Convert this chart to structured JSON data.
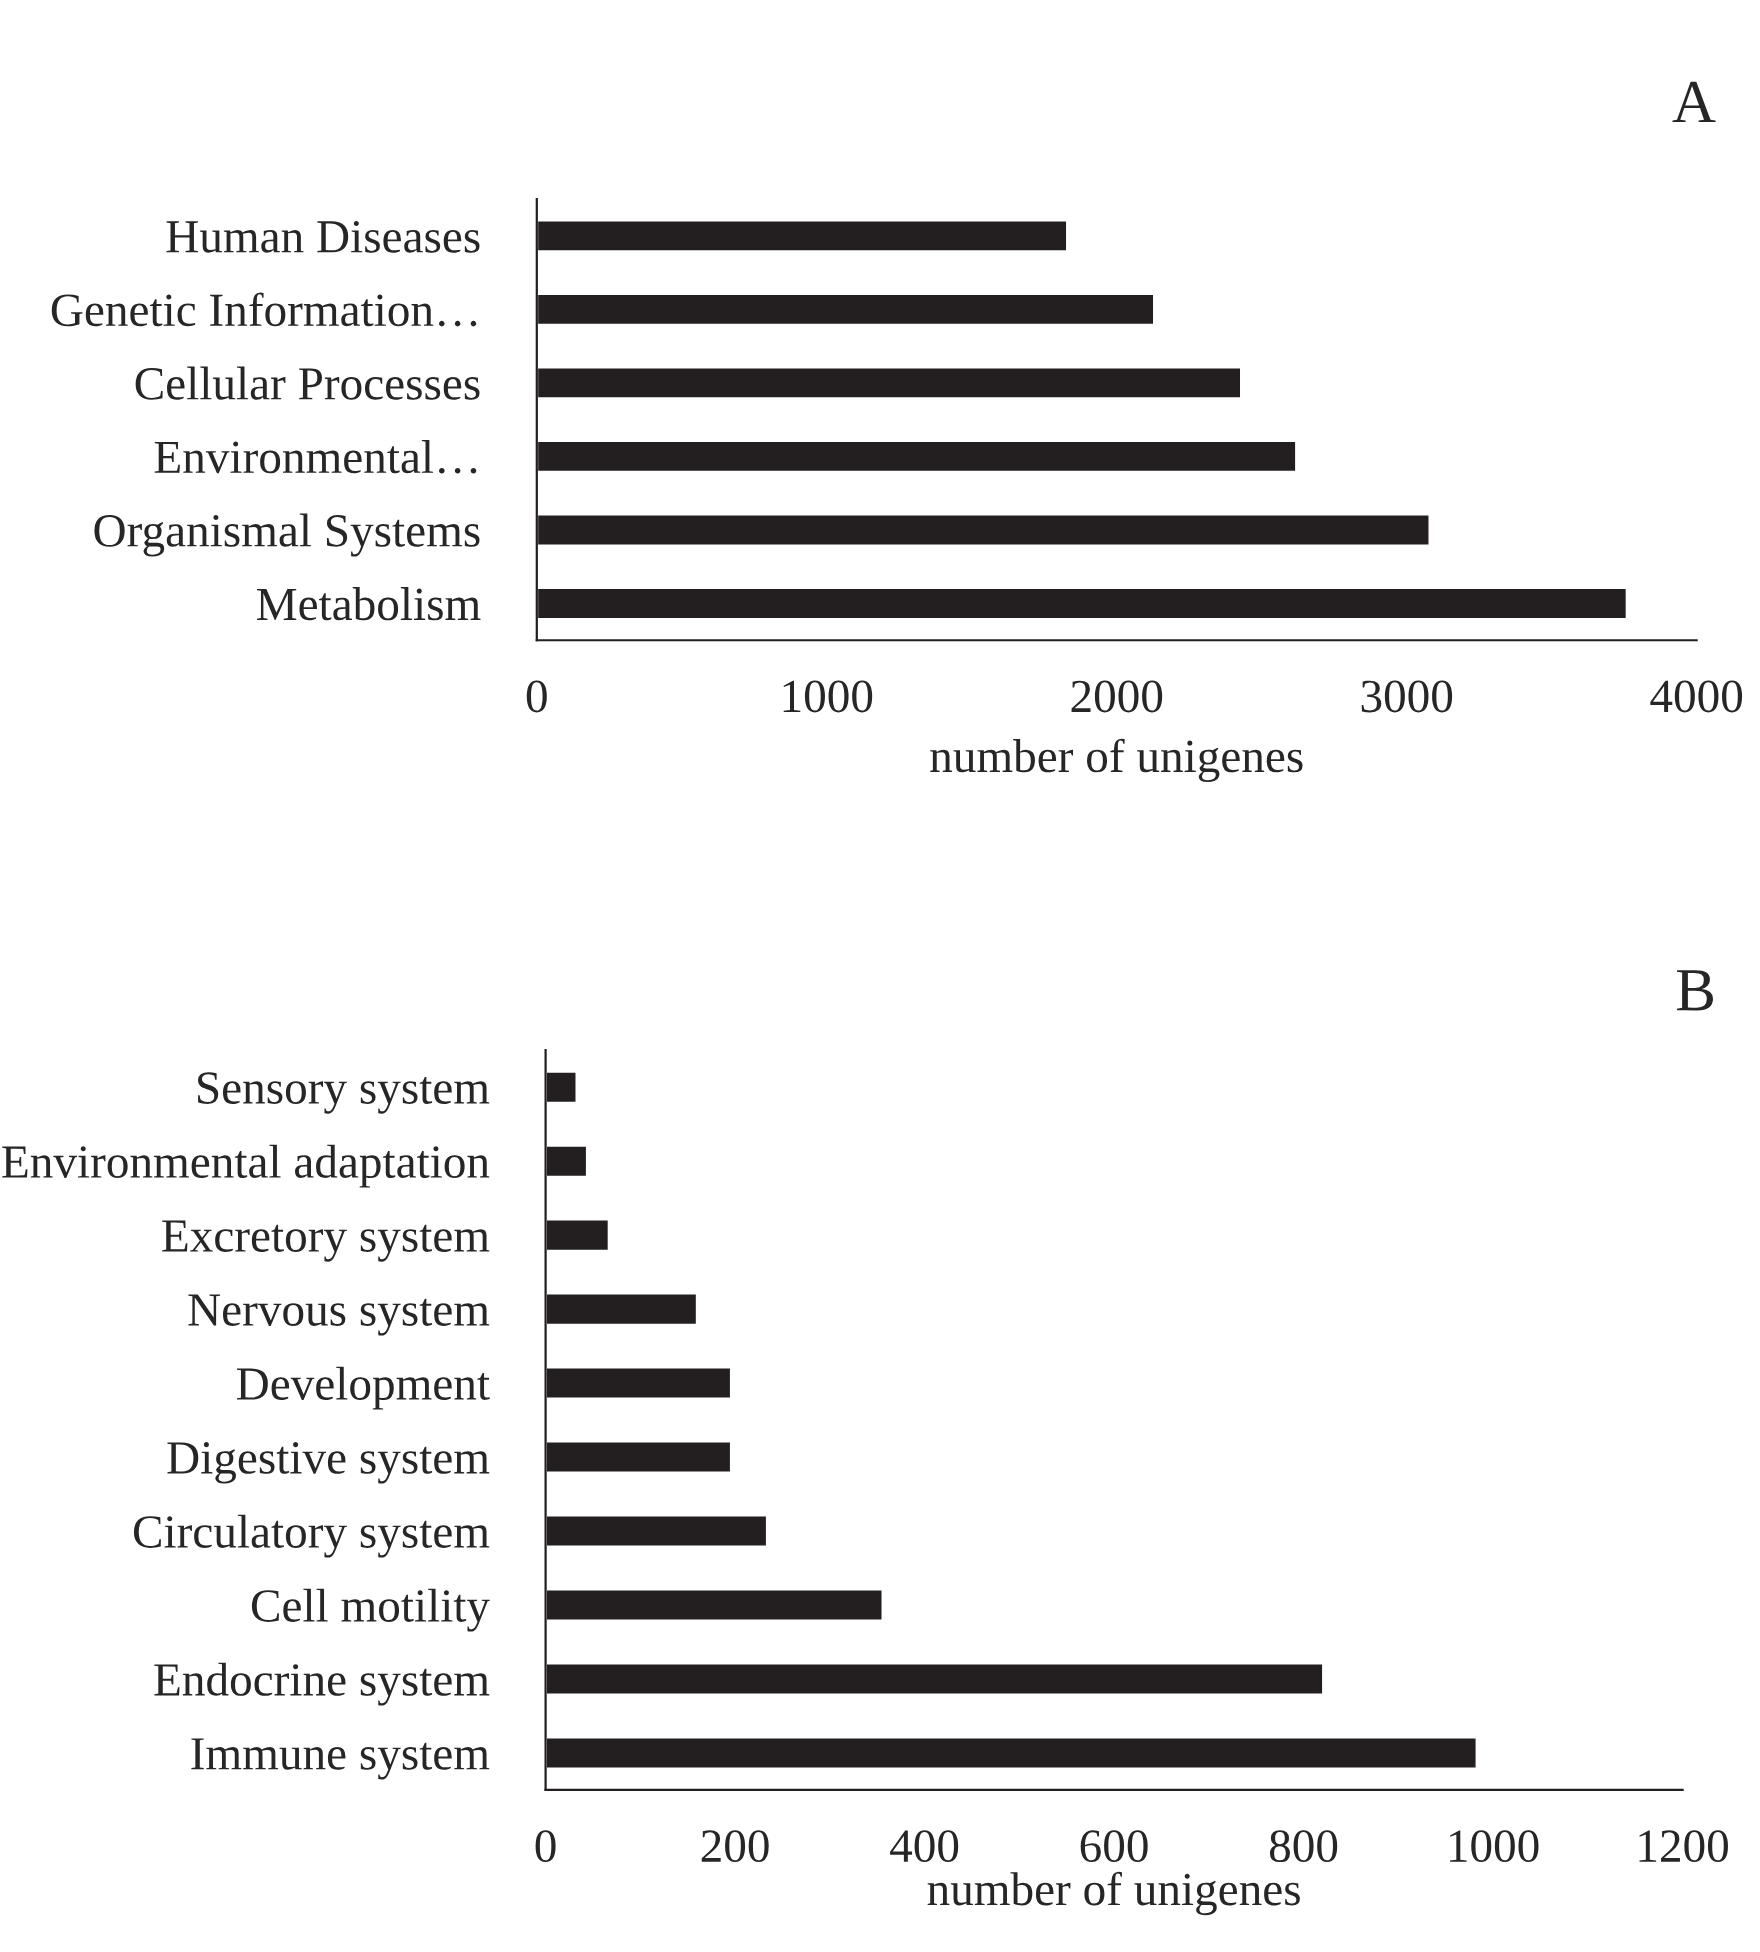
{
  "chart_data": [
    {
      "type": "bar",
      "orientation": "horizontal",
      "categories": [
        "Human Diseases",
        "Genetic Information…",
        "Cellular Processes",
        "Environmental…",
        "Organismal Systems",
        "Metabolism"
      ],
      "values": [
        1830,
        2130,
        2430,
        2620,
        3080,
        3760
      ],
      "color": "#231f20",
      "xlabel": "number of unigenes",
      "xlim": [
        0,
        4000
      ],
      "xticks": [
        0,
        1000,
        2000,
        3000,
        4000
      ],
      "grid": false,
      "annotations": [
        "A"
      ]
    },
    {
      "type": "bar",
      "orientation": "horizontal",
      "categories": [
        "Sensory system",
        "Environmental adaptation",
        "Excretory system",
        "Nervous system",
        "Development",
        "Digestive system",
        "Circulatory system",
        "Cell motility",
        "Endocrine system",
        "Immune system"
      ],
      "values": [
        33,
        44,
        67,
        160,
        196,
        196,
        234,
        356,
        821,
        983
      ],
      "color": "#231f20",
      "xlabel": "number of unigenes",
      "xlim": [
        0,
        1200
      ],
      "xticks": [
        0,
        200,
        400,
        600,
        800,
        1000,
        1200
      ],
      "grid": false,
      "annotations": [
        "B"
      ]
    }
  ]
}
